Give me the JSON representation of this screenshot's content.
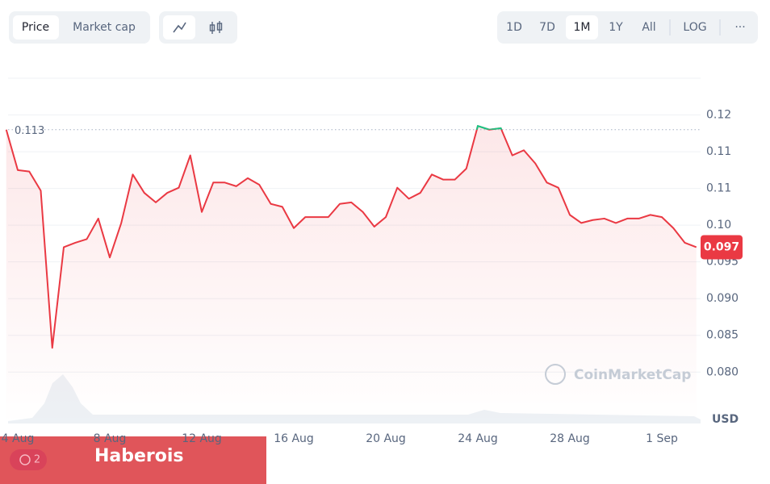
{
  "controls": {
    "metric_tabs": [
      "Price",
      "Market cap"
    ],
    "ranges": [
      "1D",
      "7D",
      "1M",
      "1Y",
      "All"
    ],
    "log": "LOG",
    "more": "···"
  },
  "watermark": "CoinMarketCap",
  "banner": {
    "text": "Haberois",
    "badge": "2"
  },
  "chart_data": {
    "type": "line",
    "categories": [
      null,
      "4 Aug",
      null,
      null,
      null,
      null,
      null,
      null,
      null,
      "8 Aug",
      null,
      null,
      null,
      null,
      null,
      null,
      null,
      "12 Aug",
      null,
      null,
      null,
      null,
      null,
      null,
      null,
      "16 Aug",
      null,
      null,
      null,
      null,
      null,
      null,
      null,
      "20 Aug",
      null,
      null,
      null,
      null,
      null,
      null,
      null,
      "24 Aug",
      null,
      null,
      null,
      null,
      null,
      null,
      null,
      "28 Aug",
      null,
      null,
      null,
      null,
      null,
      null,
      null,
      "1 Sep",
      null,
      null,
      null
    ],
    "series": [
      {
        "name": "Price",
        "color": "#ea3943",
        "above_color": "#16c784",
        "values": [
          0.113,
          0.1075,
          0.1073,
          0.1047,
          0.0833,
          0.097,
          0.0976,
          0.0981,
          0.1009,
          0.0956,
          0.1003,
          0.1069,
          0.1044,
          0.1031,
          0.1044,
          0.1051,
          0.1095,
          0.1018,
          0.1058,
          0.1058,
          0.1053,
          0.1064,
          0.1055,
          0.1029,
          0.1025,
          0.0996,
          0.1011,
          0.1011,
          0.1011,
          0.1029,
          0.1031,
          0.1018,
          0.0998,
          0.1011,
          0.1051,
          0.1036,
          0.1044,
          0.1069,
          0.1062,
          0.1062,
          0.1077,
          0.1135,
          0.113,
          0.1132,
          0.1095,
          0.1102,
          0.1084,
          0.1058,
          0.1051,
          0.1014,
          0.1003,
          0.1007,
          0.1009,
          0.1003,
          0.1009,
          0.1009,
          0.1014,
          0.1011,
          0.0996,
          0.0976,
          0.097
        ]
      }
    ],
    "reference_value": 0.113,
    "current_value": 0.097,
    "y_unit": "USD",
    "ylim": [
      0.073,
      0.12
    ],
    "yticks": [
      {
        "value": 0.08,
        "label": "0.080"
      },
      0.085,
      {
        "value": 0.09,
        "label": "0.090"
      },
      0.095,
      {
        "value": 0.1,
        "label": "0.10"
      },
      {
        "value": 0.105,
        "label": "0.11"
      },
      {
        "value": 0.11,
        "label": "0.11"
      },
      {
        "value": 0.115,
        "label": "0.12"
      }
    ],
    "grid": true
  }
}
